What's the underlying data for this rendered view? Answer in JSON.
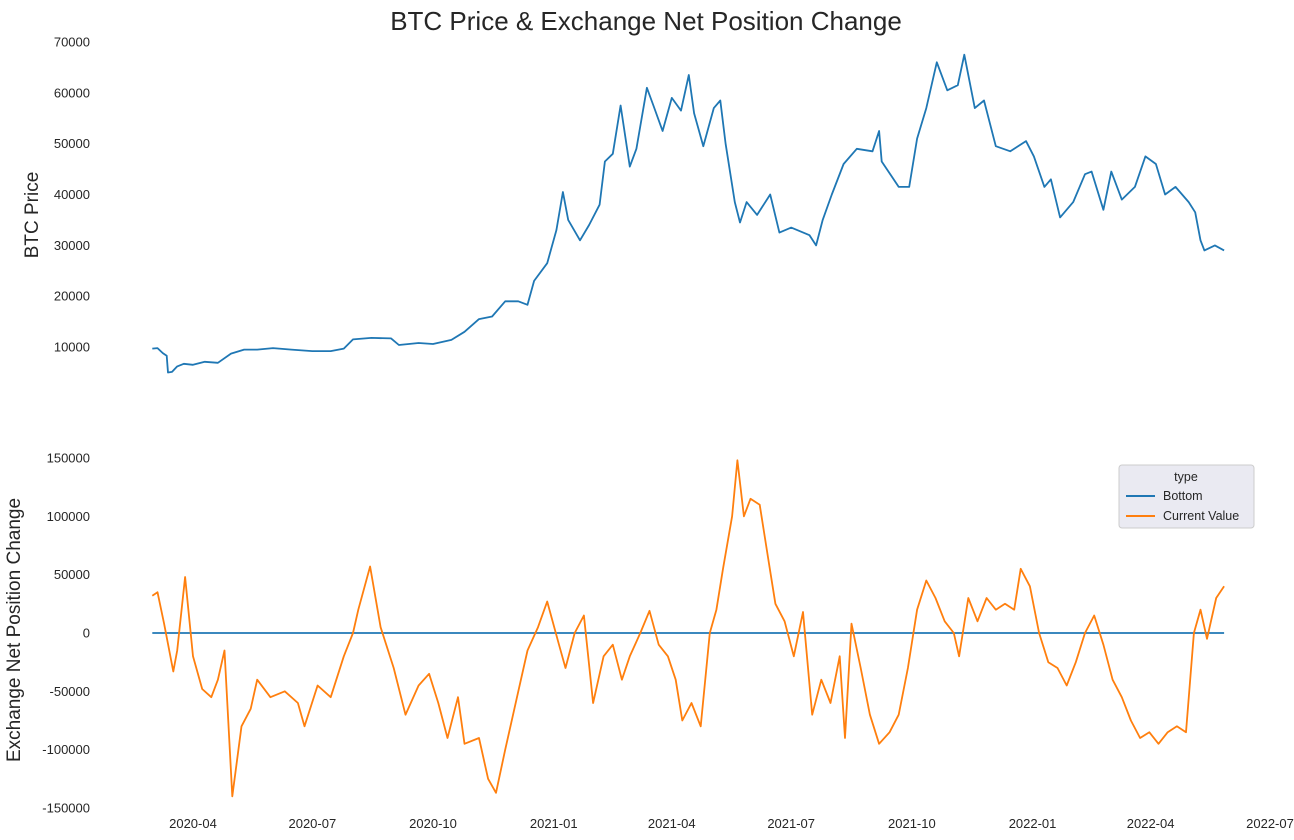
{
  "figure": {
    "title": "BTC Price & Exchange Net Position Change"
  },
  "chart_data": [
    {
      "type": "line",
      "ylabel": "BTC  Price",
      "xlabel": "",
      "ylim": [
        4500,
        70000
      ],
      "xlim": [
        "2020-02-13",
        "2022-07-01"
      ],
      "x_ticks": [
        "2020-04",
        "2020-07",
        "2020-10",
        "2021-01",
        "2021-04",
        "2021-07",
        "2021-10",
        "2022-01",
        "2022-04",
        "2022-07"
      ],
      "x_ticks_visible": false,
      "y_ticks": [
        10000,
        20000,
        30000,
        40000,
        50000,
        60000,
        70000
      ],
      "grid": false,
      "series": [
        {
          "color": "#1f77b4",
          "points": [
            [
              "2020-03-01",
              9700
            ],
            [
              "2020-03-05",
              9800
            ],
            [
              "2020-03-09",
              8800
            ],
            [
              "2020-03-12",
              8300
            ],
            [
              "2020-03-13",
              5000
            ],
            [
              "2020-03-16",
              5100
            ],
            [
              "2020-03-20",
              6200
            ],
            [
              "2020-03-25",
              6700
            ],
            [
              "2020-04-01",
              6500
            ],
            [
              "2020-04-10",
              7100
            ],
            [
              "2020-04-20",
              6900
            ],
            [
              "2020-04-30",
              8700
            ],
            [
              "2020-05-10",
              9500
            ],
            [
              "2020-05-20",
              9500
            ],
            [
              "2020-06-01",
              9800
            ],
            [
              "2020-06-15",
              9500
            ],
            [
              "2020-07-01",
              9200
            ],
            [
              "2020-07-15",
              9200
            ],
            [
              "2020-07-25",
              9700
            ],
            [
              "2020-08-01",
              11500
            ],
            [
              "2020-08-15",
              11800
            ],
            [
              "2020-08-30",
              11700
            ],
            [
              "2020-09-05",
              10400
            ],
            [
              "2020-09-20",
              10800
            ],
            [
              "2020-10-01",
              10600
            ],
            [
              "2020-10-15",
              11400
            ],
            [
              "2020-10-25",
              13000
            ],
            [
              "2020-11-05",
              15500
            ],
            [
              "2020-11-15",
              16000
            ],
            [
              "2020-11-25",
              19000
            ],
            [
              "2020-12-05",
              19000
            ],
            [
              "2020-12-12",
              18300
            ],
            [
              "2020-12-17",
              23000
            ],
            [
              "2020-12-27",
              26500
            ],
            [
              "2021-01-03",
              33000
            ],
            [
              "2021-01-08",
              40500
            ],
            [
              "2021-01-12",
              35000
            ],
            [
              "2021-01-21",
              31000
            ],
            [
              "2021-01-28",
              34000
            ],
            [
              "2021-02-05",
              38000
            ],
            [
              "2021-02-09",
              46500
            ],
            [
              "2021-02-15",
              48000
            ],
            [
              "2021-02-21",
              57500
            ],
            [
              "2021-02-28",
              45500
            ],
            [
              "2021-03-05",
              49000
            ],
            [
              "2021-03-13",
              61000
            ],
            [
              "2021-03-18",
              57500
            ],
            [
              "2021-03-25",
              52500
            ],
            [
              "2021-04-01",
              59000
            ],
            [
              "2021-04-08",
              56500
            ],
            [
              "2021-04-14",
              63500
            ],
            [
              "2021-04-18",
              56000
            ],
            [
              "2021-04-25",
              49500
            ],
            [
              "2021-05-03",
              57000
            ],
            [
              "2021-05-08",
              58500
            ],
            [
              "2021-05-12",
              50000
            ],
            [
              "2021-05-19",
              38500
            ],
            [
              "2021-05-23",
              34500
            ],
            [
              "2021-05-28",
              38500
            ],
            [
              "2021-06-05",
              36000
            ],
            [
              "2021-06-15",
              40000
            ],
            [
              "2021-06-22",
              32500
            ],
            [
              "2021-07-01",
              33500
            ],
            [
              "2021-07-15",
              32000
            ],
            [
              "2021-07-20",
              30000
            ],
            [
              "2021-07-25",
              35000
            ],
            [
              "2021-08-01",
              40000
            ],
            [
              "2021-08-10",
              46000
            ],
            [
              "2021-08-20",
              49000
            ],
            [
              "2021-09-01",
              48500
            ],
            [
              "2021-09-06",
              52500
            ],
            [
              "2021-09-08",
              46500
            ],
            [
              "2021-09-21",
              41500
            ],
            [
              "2021-09-29",
              41500
            ],
            [
              "2021-10-05",
              51000
            ],
            [
              "2021-10-12",
              57000
            ],
            [
              "2021-10-20",
              66000
            ],
            [
              "2021-10-28",
              60500
            ],
            [
              "2021-11-05",
              61500
            ],
            [
              "2021-11-10",
              67500
            ],
            [
              "2021-11-18",
              57000
            ],
            [
              "2021-11-25",
              58500
            ],
            [
              "2021-12-04",
              49500
            ],
            [
              "2021-12-15",
              48500
            ],
            [
              "2021-12-27",
              50500
            ],
            [
              "2022-01-02",
              47500
            ],
            [
              "2022-01-10",
              41500
            ],
            [
              "2022-01-15",
              43000
            ],
            [
              "2022-01-22",
              35500
            ],
            [
              "2022-02-01",
              38500
            ],
            [
              "2022-02-10",
              44000
            ],
            [
              "2022-02-15",
              44500
            ],
            [
              "2022-02-24",
              37000
            ],
            [
              "2022-03-02",
              44500
            ],
            [
              "2022-03-10",
              39000
            ],
            [
              "2022-03-20",
              41500
            ],
            [
              "2022-03-28",
              47500
            ],
            [
              "2022-04-05",
              46000
            ],
            [
              "2022-04-12",
              40000
            ],
            [
              "2022-04-20",
              41500
            ],
            [
              "2022-04-30",
              38500
            ],
            [
              "2022-05-05",
              36500
            ],
            [
              "2022-05-09",
              31000
            ],
            [
              "2022-05-12",
              29000
            ],
            [
              "2022-05-20",
              30000
            ],
            [
              "2022-05-27",
              29000
            ]
          ]
        }
      ]
    },
    {
      "type": "line",
      "ylabel": "Exchange Net Position Change",
      "xlabel": "",
      "ylim": [
        -150000,
        150000
      ],
      "xlim": [
        "2020-02-13",
        "2022-07-01"
      ],
      "x_ticks": [
        "2020-04",
        "2020-07",
        "2020-10",
        "2021-01",
        "2021-04",
        "2021-07",
        "2021-10",
        "2022-01",
        "2022-04",
        "2022-07"
      ],
      "y_ticks": [
        -150000,
        -100000,
        -50000,
        0,
        50000,
        100000,
        150000
      ],
      "grid": false,
      "legend": {
        "title": "type",
        "placement": "upper right"
      },
      "series": [
        {
          "name": "Bottom",
          "color": "#1f77b4",
          "points": [
            [
              "2020-03-01",
              0
            ],
            [
              "2022-05-27",
              0
            ]
          ]
        },
        {
          "name": "Current Value",
          "color": "#ff7f0e",
          "points": [
            [
              "2020-03-01",
              32000
            ],
            [
              "2020-03-05",
              35000
            ],
            [
              "2020-03-10",
              8000
            ],
            [
              "2020-03-17",
              -33000
            ],
            [
              "2020-03-20",
              -15000
            ],
            [
              "2020-03-26",
              48000
            ],
            [
              "2020-04-01",
              -20000
            ],
            [
              "2020-04-08",
              -48000
            ],
            [
              "2020-04-15",
              -55000
            ],
            [
              "2020-04-20",
              -40000
            ],
            [
              "2020-04-25",
              -15000
            ],
            [
              "2020-05-01",
              -140000
            ],
            [
              "2020-05-08",
              -80000
            ],
            [
              "2020-05-15",
              -65000
            ],
            [
              "2020-05-20",
              -40000
            ],
            [
              "2020-05-30",
              -55000
            ],
            [
              "2020-06-10",
              -50000
            ],
            [
              "2020-06-20",
              -60000
            ],
            [
              "2020-06-25",
              -80000
            ],
            [
              "2020-07-05",
              -45000
            ],
            [
              "2020-07-15",
              -55000
            ],
            [
              "2020-07-25",
              -20000
            ],
            [
              "2020-08-01",
              0
            ],
            [
              "2020-08-05",
              20000
            ],
            [
              "2020-08-14",
              57000
            ],
            [
              "2020-08-22",
              5000
            ],
            [
              "2020-09-01",
              -30000
            ],
            [
              "2020-09-10",
              -70000
            ],
            [
              "2020-09-20",
              -45000
            ],
            [
              "2020-09-28",
              -35000
            ],
            [
              "2020-10-05",
              -60000
            ],
            [
              "2020-10-12",
              -90000
            ],
            [
              "2020-10-20",
              -55000
            ],
            [
              "2020-10-25",
              -95000
            ],
            [
              "2020-11-05",
              -90000
            ],
            [
              "2020-11-12",
              -125000
            ],
            [
              "2020-11-18",
              -137000
            ],
            [
              "2020-11-25",
              -100000
            ],
            [
              "2020-12-05",
              -50000
            ],
            [
              "2020-12-12",
              -15000
            ],
            [
              "2020-12-20",
              5000
            ],
            [
              "2020-12-27",
              27000
            ],
            [
              "2021-01-05",
              -10000
            ],
            [
              "2021-01-10",
              -30000
            ],
            [
              "2021-01-17",
              0
            ],
            [
              "2021-01-24",
              15000
            ],
            [
              "2021-01-31",
              -60000
            ],
            [
              "2021-02-08",
              -20000
            ],
            [
              "2021-02-15",
              -10000
            ],
            [
              "2021-02-22",
              -40000
            ],
            [
              "2021-02-28",
              -20000
            ],
            [
              "2021-03-08",
              0
            ],
            [
              "2021-03-15",
              19000
            ],
            [
              "2021-03-22",
              -10000
            ],
            [
              "2021-03-29",
              -20000
            ],
            [
              "2021-04-04",
              -40000
            ],
            [
              "2021-04-09",
              -75000
            ],
            [
              "2021-04-16",
              -60000
            ],
            [
              "2021-04-23",
              -80000
            ],
            [
              "2021-04-30",
              0
            ],
            [
              "2021-05-05",
              20000
            ],
            [
              "2021-05-10",
              55000
            ],
            [
              "2021-05-17",
              100000
            ],
            [
              "2021-05-21",
              148000
            ],
            [
              "2021-05-26",
              100000
            ],
            [
              "2021-05-31",
              115000
            ],
            [
              "2021-06-07",
              110000
            ],
            [
              "2021-06-14",
              60000
            ],
            [
              "2021-06-19",
              25000
            ],
            [
              "2021-06-26",
              10000
            ],
            [
              "2021-07-03",
              -20000
            ],
            [
              "2021-07-10",
              18000
            ],
            [
              "2021-07-17",
              -70000
            ],
            [
              "2021-07-24",
              -40000
            ],
            [
              "2021-07-31",
              -60000
            ],
            [
              "2021-08-07",
              -20000
            ],
            [
              "2021-08-11",
              -90000
            ],
            [
              "2021-08-16",
              8000
            ],
            [
              "2021-08-23",
              -30000
            ],
            [
              "2021-08-30",
              -70000
            ],
            [
              "2021-09-06",
              -95000
            ],
            [
              "2021-09-14",
              -85000
            ],
            [
              "2021-09-21",
              -70000
            ],
            [
              "2021-09-28",
              -30000
            ],
            [
              "2021-10-05",
              20000
            ],
            [
              "2021-10-12",
              45000
            ],
            [
              "2021-10-19",
              30000
            ],
            [
              "2021-10-26",
              10000
            ],
            [
              "2021-11-02",
              0
            ],
            [
              "2021-11-06",
              -20000
            ],
            [
              "2021-11-13",
              30000
            ],
            [
              "2021-11-20",
              10000
            ],
            [
              "2021-11-27",
              30000
            ],
            [
              "2021-12-04",
              20000
            ],
            [
              "2021-12-11",
              25000
            ],
            [
              "2021-12-18",
              20000
            ],
            [
              "2021-12-23",
              55000
            ],
            [
              "2021-12-30",
              40000
            ],
            [
              "2022-01-06",
              0
            ],
            [
              "2022-01-13",
              -25000
            ],
            [
              "2022-01-20",
              -30000
            ],
            [
              "2022-01-27",
              -45000
            ],
            [
              "2022-02-03",
              -25000
            ],
            [
              "2022-02-10",
              0
            ],
            [
              "2022-02-17",
              15000
            ],
            [
              "2022-02-24",
              -10000
            ],
            [
              "2022-03-03",
              -40000
            ],
            [
              "2022-03-10",
              -55000
            ],
            [
              "2022-03-17",
              -75000
            ],
            [
              "2022-03-24",
              -90000
            ],
            [
              "2022-03-31",
              -85000
            ],
            [
              "2022-04-07",
              -95000
            ],
            [
              "2022-04-14",
              -85000
            ],
            [
              "2022-04-21",
              -80000
            ],
            [
              "2022-04-28",
              -85000
            ],
            [
              "2022-05-04",
              0
            ],
            [
              "2022-05-09",
              20000
            ],
            [
              "2022-05-14",
              -5000
            ],
            [
              "2022-05-21",
              30000
            ],
            [
              "2022-05-27",
              40000
            ]
          ]
        }
      ]
    }
  ]
}
